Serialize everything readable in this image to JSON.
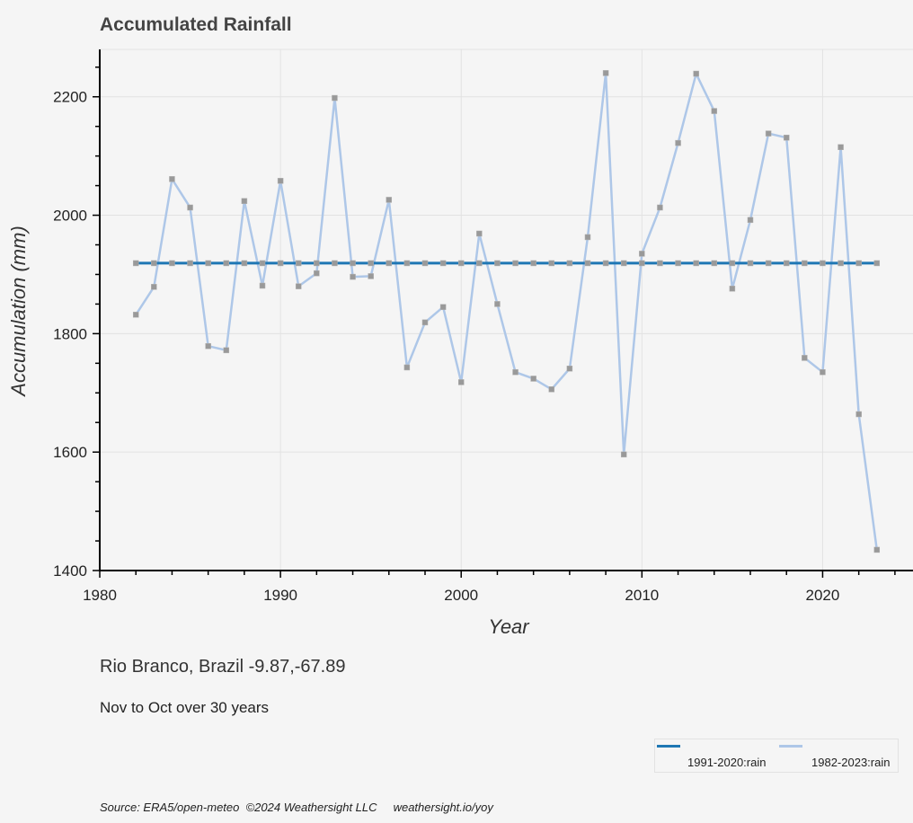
{
  "chart_data": {
    "type": "line",
    "title": "Accumulated Rainfall",
    "xlabel": "Year",
    "ylabel": "Accumulation (mm)",
    "xlim": [
      1980,
      2025
    ],
    "ylim": [
      1400,
      2280
    ],
    "x_ticks": [
      1980,
      1990,
      2000,
      2010,
      2020
    ],
    "y_ticks": [
      1400,
      1600,
      1800,
      2000,
      2200
    ],
    "grid": true,
    "legend_position": "bottom-right",
    "x": [
      1982,
      1983,
      1984,
      1985,
      1986,
      1987,
      1988,
      1989,
      1990,
      1991,
      1992,
      1993,
      1994,
      1995,
      1996,
      1997,
      1998,
      1999,
      2000,
      2001,
      2002,
      2003,
      2004,
      2005,
      2006,
      2007,
      2008,
      2009,
      2010,
      2011,
      2012,
      2013,
      2014,
      2015,
      2016,
      2017,
      2018,
      2019,
      2020,
      2021,
      2022,
      2023
    ],
    "series": [
      {
        "name": "1991-2020:rain",
        "color": "#1f77b4",
        "values": [
          1919,
          1919,
          1919,
          1919,
          1919,
          1919,
          1919,
          1919,
          1919,
          1919,
          1919,
          1919,
          1919,
          1919,
          1919,
          1919,
          1919,
          1919,
          1919,
          1919,
          1919,
          1919,
          1919,
          1919,
          1919,
          1919,
          1919,
          1919,
          1919,
          1919,
          1919,
          1919,
          1919,
          1919,
          1919,
          1919,
          1919,
          1919,
          1919,
          1919,
          1919,
          1919
        ]
      },
      {
        "name": "1982-2023:rain",
        "color": "#aec7e8",
        "values": [
          1832,
          1879,
          2061,
          2013,
          1779,
          1772,
          2024,
          1881,
          2058,
          1880,
          1902,
          2198,
          1896,
          1897,
          2026,
          1743,
          1819,
          1845,
          1718,
          1969,
          1850,
          1735,
          1724,
          1706,
          1741,
          1963,
          2240,
          1596,
          1935,
          2013,
          2122,
          2239,
          2176,
          1876,
          1992,
          2138,
          2131,
          1759,
          1735,
          2115,
          1664,
          1435
        ]
      }
    ]
  },
  "caption": {
    "location": "Rio Branco, Brazil -9.87,-67.89",
    "period": "Nov to Oct over 30 years",
    "source": "Source: ERA5/open-meteo  ©2024 Weathersight LLC     weathersight.io/yoy"
  },
  "colors": {
    "background": "#f5f5f5",
    "grid": "#e2e2e2",
    "marker": "#999999"
  }
}
